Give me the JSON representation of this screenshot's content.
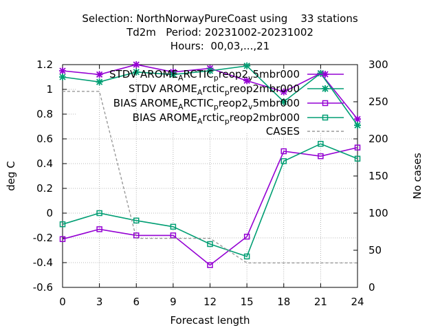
{
  "title_lines": {
    "line1": "Selection: NorthNorwayPureCoast using    33 stations",
    "line2": "Td2m   Period: 20231002-20231002",
    "line3": "Hours:  00,03,...,21"
  },
  "chart_data": {
    "type": "line",
    "xlabel": "Forecast length",
    "ylabel": "deg C",
    "y2label": "No cases",
    "x": [
      0,
      3,
      6,
      9,
      12,
      15,
      18,
      21,
      24
    ],
    "xlim": [
      0,
      24
    ],
    "ylim": [
      -0.6,
      1.2
    ],
    "y2lim": [
      0,
      300
    ],
    "x_ticks": [
      "0",
      "3",
      "6",
      "9",
      "12",
      "15",
      "18",
      "21",
      "24"
    ],
    "y_ticks": [
      "-0.6",
      "-0.4",
      "-0.2",
      "0",
      "0.2",
      "0.4",
      "0.6",
      "0.8",
      "1",
      "1.2"
    ],
    "y2_ticks": [
      "0",
      "50",
      "100",
      "150",
      "200",
      "250",
      "300"
    ],
    "grid": true,
    "legend_position": "top-right",
    "series": [
      {
        "name": "STDV AROME_ARCTIC_preop2_v5mbr000",
        "legend_main": "STDV AROME",
        "legend_parts": [
          [
            "A",
            "sub"
          ],
          [
            "RCTIC",
            "base"
          ],
          [
            "p",
            "sub"
          ],
          [
            "reop2",
            "base"
          ],
          [
            "v",
            "sub"
          ],
          [
            "5mbr000",
            "base"
          ]
        ],
        "color": "#9400d3",
        "marker": "star",
        "axis": "y",
        "values": [
          1.15,
          1.12,
          1.2,
          1.14,
          1.17,
          1.07,
          0.98,
          1.13,
          0.76
        ]
      },
      {
        "name": "STDV AROME_Arctic_preop2mbr000",
        "legend_main": "STDV AROME",
        "legend_parts": [
          [
            "A",
            "sub"
          ],
          [
            "rctic",
            "base"
          ],
          [
            "p",
            "sub"
          ],
          [
            "reop2mbr000",
            "base"
          ]
        ],
        "color": "#009e73",
        "marker": "star",
        "axis": "y",
        "values": [
          1.1,
          1.06,
          1.14,
          1.12,
          1.15,
          1.19,
          0.9,
          1.13,
          0.71
        ]
      },
      {
        "name": "BIAS AROME_ARCTIC_preop2_v5mbr000",
        "legend_main": "BIAS AROME",
        "legend_parts": [
          [
            "A",
            "sub"
          ],
          [
            "RCTIC",
            "base"
          ],
          [
            "p",
            "sub"
          ],
          [
            "reop2",
            "base"
          ],
          [
            "v",
            "sub"
          ],
          [
            "5mbr000",
            "base"
          ]
        ],
        "color": "#9400d3",
        "marker": "square",
        "axis": "y",
        "values": [
          -0.21,
          -0.13,
          -0.18,
          -0.18,
          -0.42,
          -0.19,
          0.5,
          0.46,
          0.53
        ]
      },
      {
        "name": "BIAS AROME_Arctic_preop2mbr000",
        "legend_main": "BIAS AROME",
        "legend_parts": [
          [
            "A",
            "sub"
          ],
          [
            "rctic",
            "base"
          ],
          [
            "p",
            "sub"
          ],
          [
            "reop2mbr000",
            "base"
          ]
        ],
        "color": "#009e73",
        "marker": "square",
        "axis": "y",
        "values": [
          -0.09,
          0.0,
          -0.06,
          -0.11,
          -0.25,
          -0.35,
          0.42,
          0.56,
          0.44
        ]
      },
      {
        "name": "CASES",
        "legend_main": "CASES",
        "legend_parts": [],
        "color": "#999999",
        "marker": "none",
        "dashed": true,
        "axis": "y2",
        "values": [
          264,
          264,
          66,
          66,
          66,
          33,
          33,
          33,
          33
        ]
      }
    ]
  }
}
